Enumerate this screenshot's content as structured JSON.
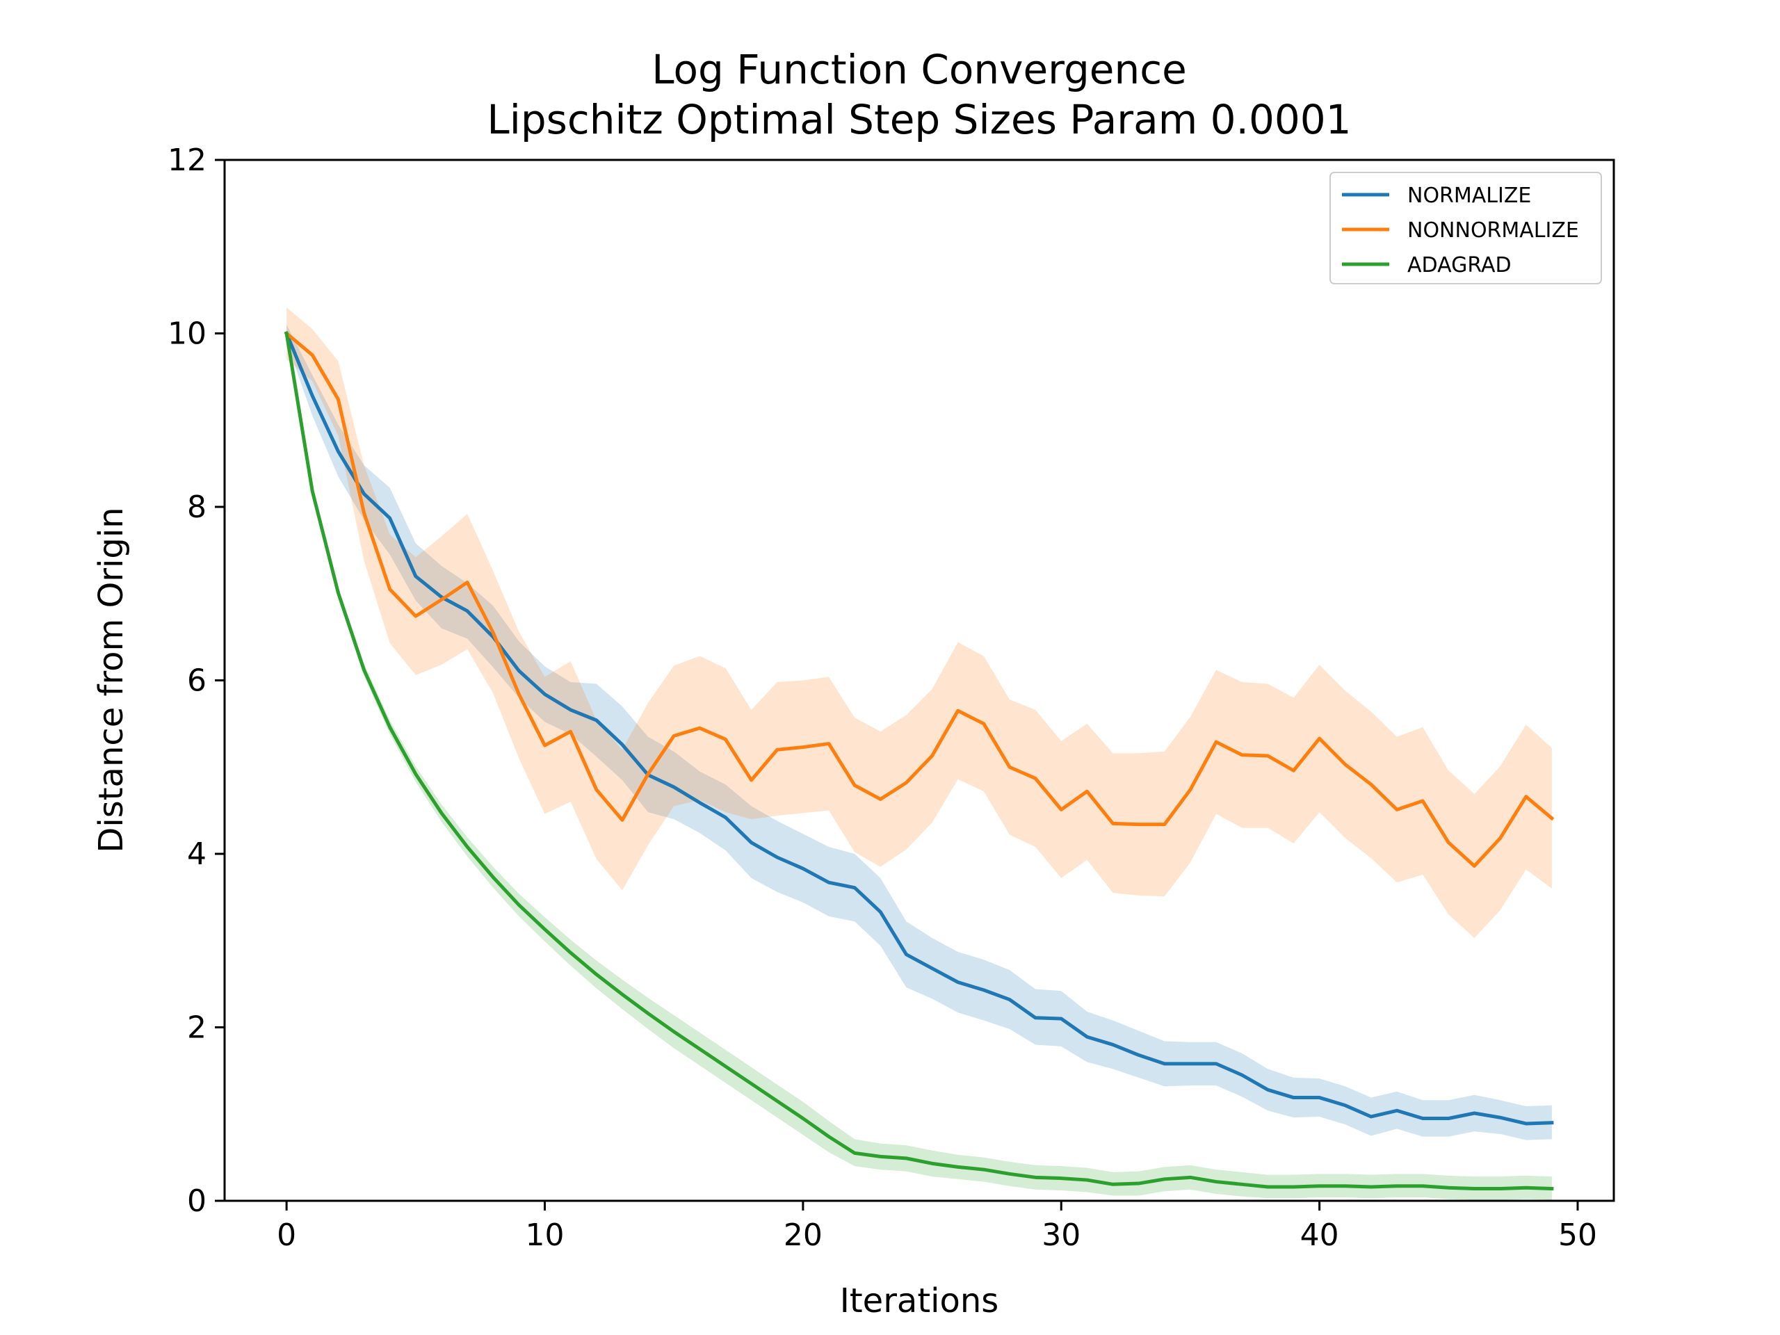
{
  "chart_data": {
    "type": "line",
    "title": [
      "Log Function Convergence",
      "Lipschitz Optimal Step Sizes Param 0.0001"
    ],
    "xlabel": "Iterations",
    "ylabel": "Distance from Origin",
    "xlim": [
      -2.4,
      51.4
    ],
    "ylim": [
      0,
      12
    ],
    "xticks": [
      0,
      10,
      20,
      30,
      40,
      50
    ],
    "yticks": [
      0,
      2,
      4,
      6,
      8,
      10,
      12
    ],
    "grid": false,
    "legend_position": "top-right",
    "x": [
      0,
      1,
      2,
      3,
      4,
      5,
      6,
      7,
      8,
      9,
      10,
      11,
      12,
      13,
      14,
      15,
      16,
      17,
      18,
      19,
      20,
      21,
      22,
      23,
      24,
      25,
      26,
      27,
      28,
      29,
      30,
      31,
      32,
      33,
      34,
      35,
      36,
      37,
      38,
      39,
      40,
      41,
      42,
      43,
      44,
      45,
      46,
      47,
      48,
      49
    ],
    "series": [
      {
        "name": "NORMALIZE",
        "color": "#1f77b4",
        "values": [
          10.0,
          9.28,
          8.64,
          8.15,
          7.87,
          7.2,
          6.96,
          6.8,
          6.5,
          6.11,
          5.84,
          5.66,
          5.54,
          5.26,
          4.91,
          4.77,
          4.59,
          4.42,
          4.13,
          3.96,
          3.83,
          3.67,
          3.61,
          3.33,
          2.84,
          2.68,
          2.52,
          2.43,
          2.32,
          2.11,
          2.1,
          1.89,
          1.8,
          1.68,
          1.58,
          1.58,
          1.58,
          1.45,
          1.28,
          1.19,
          1.19,
          1.1,
          0.97,
          1.04,
          0.95,
          0.95,
          1.01,
          0.96,
          0.89,
          0.9
        ],
        "lower": [
          9.9,
          9.05,
          8.35,
          7.85,
          7.45,
          6.92,
          6.6,
          6.48,
          6.15,
          5.8,
          5.52,
          5.38,
          5.12,
          4.85,
          4.48,
          4.4,
          4.24,
          4.04,
          3.72,
          3.56,
          3.44,
          3.28,
          3.22,
          2.94,
          2.46,
          2.33,
          2.17,
          2.08,
          1.98,
          1.8,
          1.78,
          1.6,
          1.52,
          1.42,
          1.32,
          1.33,
          1.33,
          1.2,
          1.04,
          0.96,
          0.97,
          0.88,
          0.75,
          0.83,
          0.74,
          0.74,
          0.8,
          0.77,
          0.7,
          0.71
        ],
        "upper": [
          10.1,
          9.52,
          8.95,
          8.48,
          8.22,
          7.58,
          7.32,
          7.12,
          6.86,
          6.45,
          6.16,
          5.98,
          5.96,
          5.7,
          5.35,
          5.18,
          4.95,
          4.8,
          4.55,
          4.38,
          4.23,
          4.08,
          4.0,
          3.72,
          3.22,
          3.03,
          2.87,
          2.78,
          2.66,
          2.44,
          2.42,
          2.18,
          2.08,
          1.96,
          1.84,
          1.83,
          1.83,
          1.7,
          1.52,
          1.42,
          1.41,
          1.32,
          1.19,
          1.26,
          1.16,
          1.16,
          1.22,
          1.16,
          1.09,
          1.1
        ]
      },
      {
        "name": "NONNORMALIZE",
        "color": "#ff7f0e",
        "values": [
          10.0,
          9.75,
          9.24,
          7.93,
          7.05,
          6.74,
          6.93,
          7.13,
          6.55,
          5.84,
          5.25,
          5.41,
          4.74,
          4.39,
          4.92,
          5.36,
          5.45,
          5.32,
          4.85,
          5.2,
          5.23,
          5.27,
          4.79,
          4.63,
          4.82,
          5.13,
          5.65,
          5.5,
          5.0,
          4.87,
          4.51,
          4.72,
          4.35,
          4.34,
          4.34,
          4.74,
          5.29,
          5.14,
          5.13,
          4.96,
          5.33,
          5.03,
          4.8,
          4.51,
          4.61,
          4.13,
          3.86,
          4.18,
          4.66,
          4.41
        ],
        "lower": [
          9.7,
          9.45,
          8.82,
          7.38,
          6.43,
          6.06,
          6.18,
          6.36,
          5.85,
          5.1,
          4.46,
          4.6,
          3.94,
          3.58,
          4.1,
          4.55,
          4.62,
          4.48,
          4.4,
          4.44,
          4.47,
          4.5,
          4.02,
          3.85,
          4.05,
          4.36,
          4.86,
          4.72,
          4.22,
          4.08,
          3.72,
          3.93,
          3.55,
          3.52,
          3.51,
          3.9,
          4.46,
          4.3,
          4.3,
          4.12,
          4.48,
          4.18,
          3.95,
          3.67,
          3.76,
          3.3,
          3.03,
          3.35,
          3.82,
          3.6
        ],
        "upper": [
          10.3,
          10.05,
          9.68,
          8.48,
          7.68,
          7.42,
          7.66,
          7.92,
          7.26,
          6.56,
          6.04,
          6.22,
          5.54,
          5.2,
          5.74,
          6.17,
          6.28,
          6.14,
          5.66,
          5.98,
          6.0,
          6.04,
          5.57,
          5.41,
          5.6,
          5.9,
          6.44,
          6.28,
          5.78,
          5.66,
          5.3,
          5.5,
          5.16,
          5.16,
          5.18,
          5.58,
          6.12,
          5.98,
          5.96,
          5.8,
          6.18,
          5.88,
          5.64,
          5.35,
          5.46,
          4.96,
          4.69,
          5.01,
          5.49,
          5.22
        ]
      },
      {
        "name": "ADAGRAD",
        "color": "#2ca02c",
        "values": [
          10.0,
          8.18,
          7.01,
          6.12,
          5.46,
          4.92,
          4.47,
          4.08,
          3.73,
          3.41,
          3.13,
          2.86,
          2.61,
          2.38,
          2.16,
          1.95,
          1.75,
          1.55,
          1.35,
          1.15,
          0.95,
          0.74,
          0.55,
          0.51,
          0.49,
          0.43,
          0.39,
          0.36,
          0.31,
          0.27,
          0.26,
          0.24,
          0.19,
          0.2,
          0.25,
          0.27,
          0.22,
          0.19,
          0.16,
          0.16,
          0.17,
          0.17,
          0.16,
          0.17,
          0.17,
          0.15,
          0.14,
          0.14,
          0.15,
          0.14
        ],
        "lower": [
          10.0,
          8.13,
          6.95,
          6.05,
          5.38,
          4.83,
          4.37,
          3.97,
          3.61,
          3.28,
          2.99,
          2.71,
          2.45,
          2.21,
          1.98,
          1.76,
          1.56,
          1.36,
          1.16,
          0.96,
          0.76,
          0.56,
          0.4,
          0.36,
          0.34,
          0.28,
          0.25,
          0.22,
          0.17,
          0.13,
          0.12,
          0.1,
          0.06,
          0.06,
          0.11,
          0.13,
          0.08,
          0.05,
          0.03,
          0.03,
          0.04,
          0.04,
          0.03,
          0.04,
          0.04,
          0.02,
          0.01,
          0.01,
          0.02,
          0.01
        ],
        "upper": [
          10.0,
          8.23,
          7.07,
          6.19,
          5.54,
          5.01,
          4.57,
          4.19,
          3.85,
          3.54,
          3.27,
          3.01,
          2.77,
          2.55,
          2.34,
          2.14,
          1.94,
          1.74,
          1.54,
          1.34,
          1.14,
          0.92,
          0.71,
          0.66,
          0.64,
          0.58,
          0.53,
          0.5,
          0.45,
          0.41,
          0.4,
          0.38,
          0.33,
          0.34,
          0.39,
          0.41,
          0.36,
          0.33,
          0.3,
          0.3,
          0.31,
          0.31,
          0.3,
          0.31,
          0.31,
          0.29,
          0.28,
          0.28,
          0.29,
          0.28
        ]
      }
    ]
  }
}
